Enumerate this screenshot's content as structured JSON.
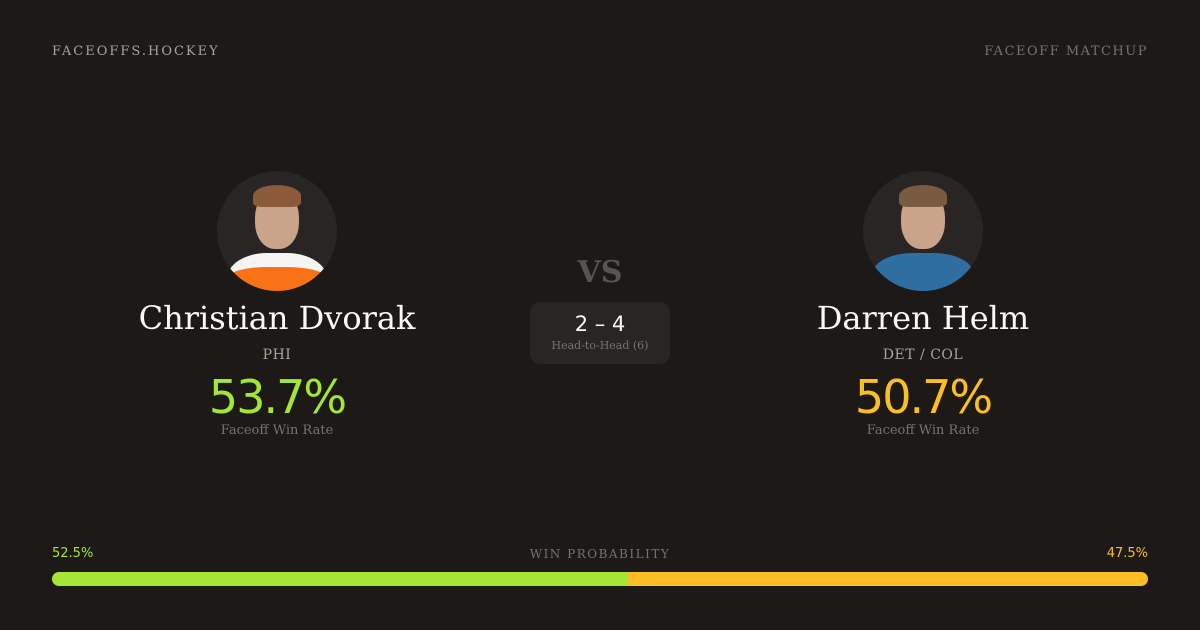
{
  "header": {
    "brand": "FACEOFFS.HOCKEY",
    "label": "FACEOFF MATCHUP"
  },
  "colors": {
    "player1": "#a3e635",
    "player2": "#fbbf24",
    "background": "#1c1917"
  },
  "player1": {
    "name": "Christian Dvorak",
    "team": "PHI",
    "win_rate": "53.7%",
    "win_rate_label": "Faceoff Win Rate"
  },
  "player2": {
    "name": "Darren Helm",
    "team": "DET / COL",
    "win_rate": "50.7%",
    "win_rate_label": "Faceoff Win Rate"
  },
  "versus": "VS",
  "head_to_head": {
    "score": "2 – 4",
    "label": "Head-to-Head (6)"
  },
  "win_probability": {
    "title": "WIN PROBABILITY",
    "player1": "52.5%",
    "player2": "47.5%",
    "player1_value": 52.5,
    "player2_value": 47.5
  }
}
